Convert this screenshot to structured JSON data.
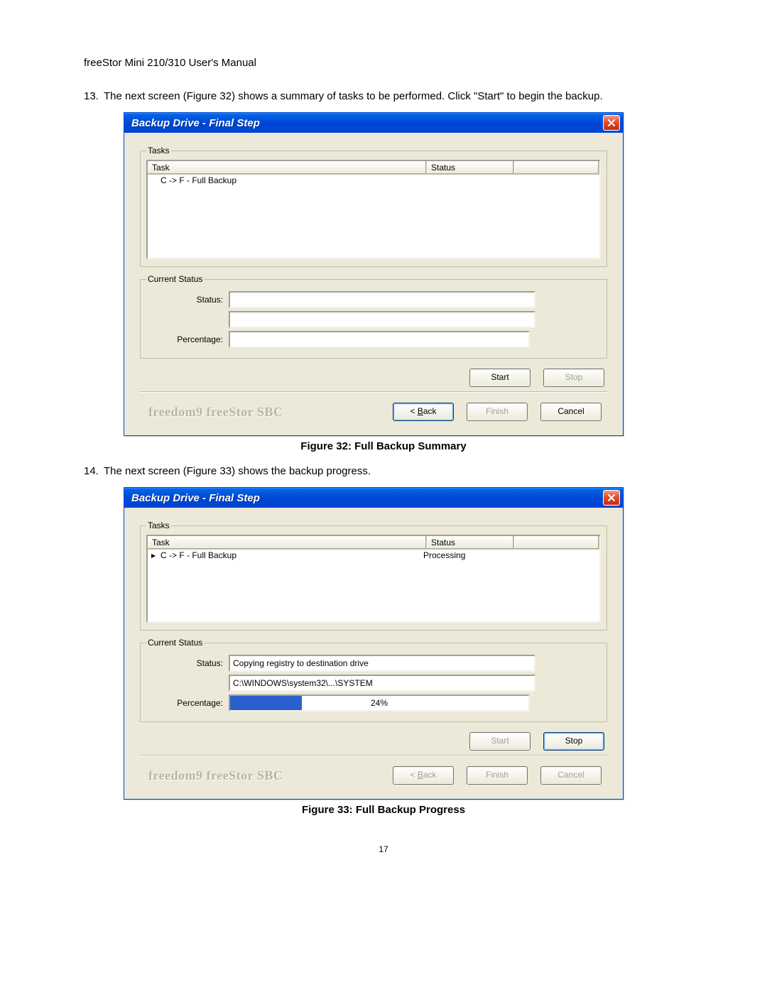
{
  "doc": {
    "header": "freeStor Mini 210/310 User's Manual",
    "page_number": "17",
    "step13_num": "13.",
    "step13_text": "The next screen (Figure 32) shows a summary of tasks to be performed. Click \"Start\" to begin the backup.",
    "step14_num": "14.",
    "step14_text": "The next screen (Figure 33) shows the backup progress.",
    "fig32_caption": "Figure 32: Full Backup Summary",
    "fig33_caption": "Figure 33: Full Backup Progress"
  },
  "dialog_common": {
    "title": "Backup Drive - Final Step",
    "tasks_legend": "Tasks",
    "cs_legend": "Current Status",
    "task_col": "Task",
    "status_col": "Status",
    "status_label": "Status:",
    "percent_label": "Percentage:",
    "brand": "freedom9 freeStor SBC",
    "btn_start": "Start",
    "btn_stop": "Stop",
    "btn_back_pre": "< ",
    "btn_back_u": "B",
    "btn_back_post": "ack",
    "btn_finish": "Finish",
    "btn_cancel": "Cancel"
  },
  "fig32": {
    "task_name": "C -> F - Full Backup",
    "task_status": "",
    "status_text": "",
    "file_text": "",
    "percent_value": 0,
    "percent_text": "",
    "buttons": {
      "start_enabled": true,
      "stop_enabled": false,
      "back_default": true,
      "back_enabled": true,
      "finish_enabled": false,
      "cancel_enabled": true
    }
  },
  "fig33": {
    "has_arrow": true,
    "task_name": "C -> F - Full Backup",
    "task_status": "Processing",
    "status_text": "Copying registry to destination drive",
    "file_text": "C:\\WINDOWS\\system32\\...\\SYSTEM",
    "percent_value": 24,
    "percent_text": "24%",
    "buttons": {
      "start_enabled": false,
      "stop_enabled": true,
      "stop_default": true,
      "back_enabled": false,
      "finish_enabled": false,
      "cancel_enabled": false
    }
  },
  "colors": {
    "dialog_bg": "#ece9d8",
    "titlebar_main": "#0046d5",
    "close_btn": "#e04a2c",
    "progress_fill": "#2a5fcd",
    "brand_text": "#b8b5a6"
  }
}
